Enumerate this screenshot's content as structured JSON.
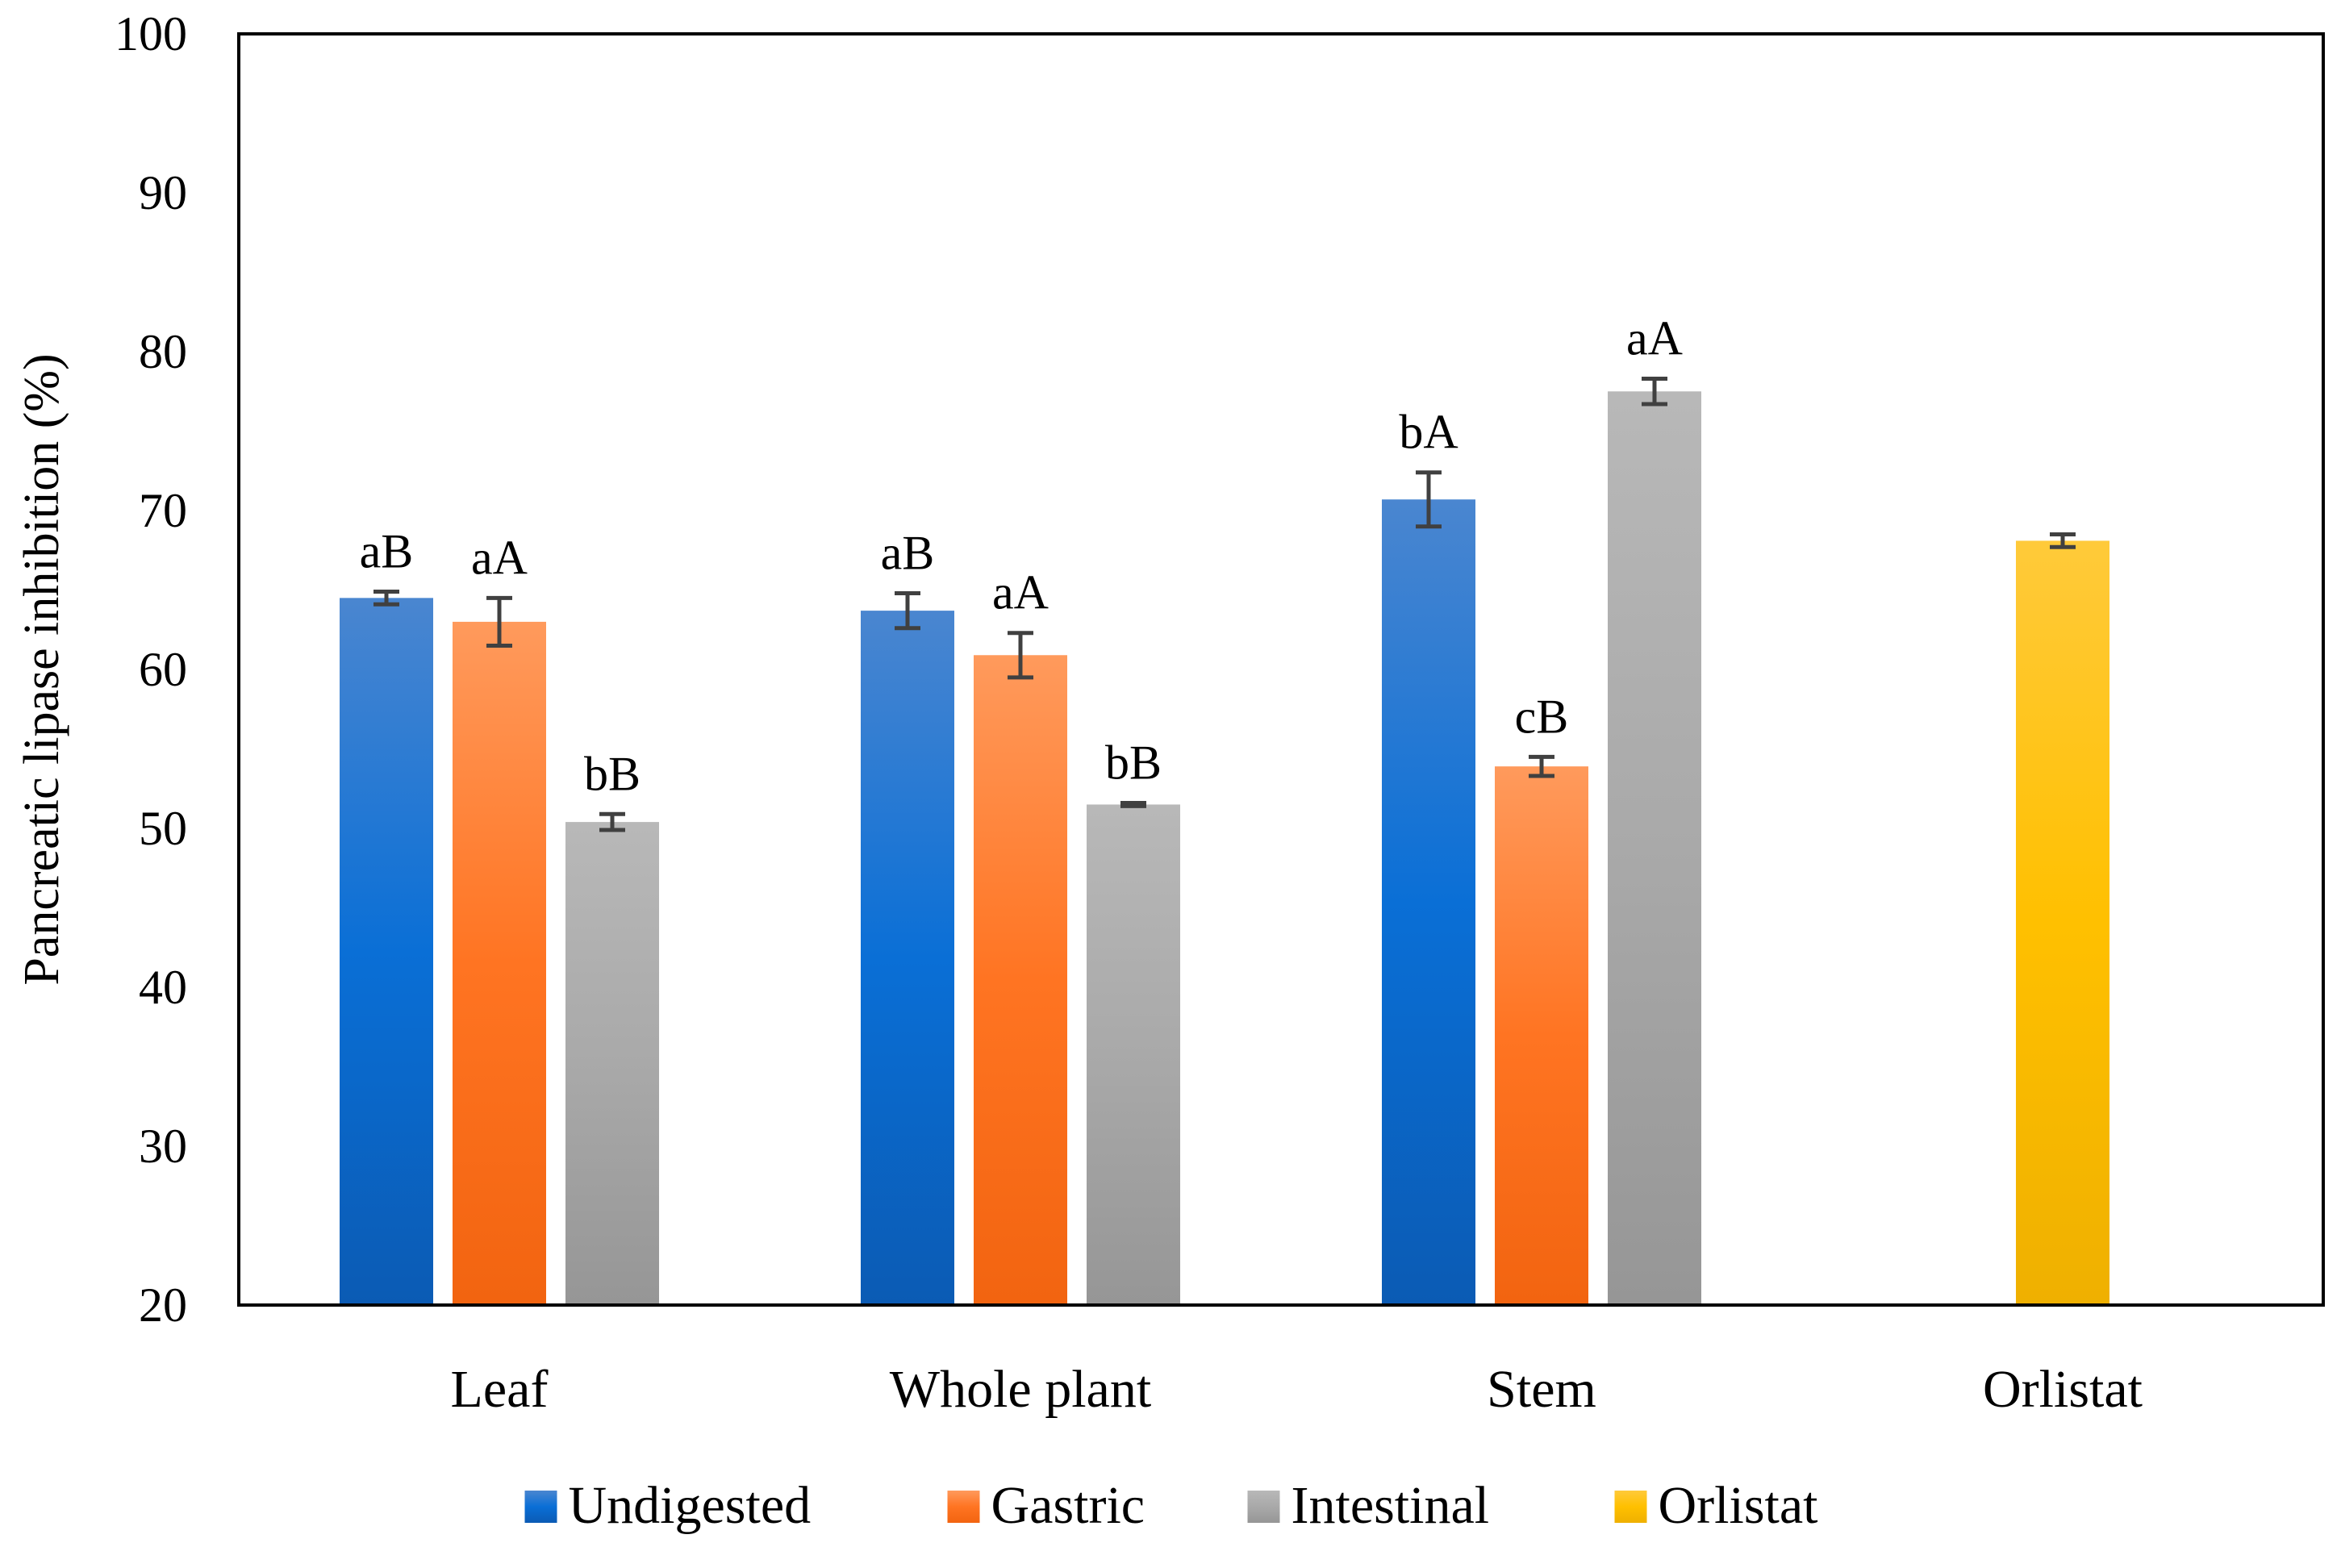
{
  "chart_data": {
    "type": "bar",
    "title": "",
    "xlabel": "",
    "ylabel": "Pancreatic lipase inhibition (%)",
    "ylim": [
      20,
      100
    ],
    "yticks": [
      20,
      30,
      40,
      50,
      60,
      70,
      80,
      90,
      100
    ],
    "grid": false,
    "legend_position": "bottom",
    "categories": [
      "Leaf",
      "Whole plant",
      "Stem",
      "Orlistat"
    ],
    "series": [
      {
        "name": "Undigested",
        "color": "#1565c0",
        "values": [
          64.5,
          63.7,
          70.7,
          null
        ],
        "errors": [
          0.4,
          1.1,
          1.7,
          null
        ],
        "labels": [
          "aB",
          "aB",
          "bA",
          null
        ]
      },
      {
        "name": "Gastric",
        "color": "#ff7a2a",
        "values": [
          63.0,
          60.9,
          53.9,
          null
        ],
        "errors": [
          1.5,
          1.4,
          0.6,
          null
        ],
        "labels": [
          "aA",
          "aA",
          "cB",
          null
        ]
      },
      {
        "name": "Intestinal",
        "color": "#a6a6a6",
        "values": [
          50.4,
          51.5,
          77.5,
          null
        ],
        "errors": [
          0.5,
          0.1,
          0.8,
          null
        ],
        "labels": [
          "bB",
          "bB",
          "aA",
          null
        ]
      },
      {
        "name": "Orlistat",
        "color": "#ffc000",
        "values": [
          null,
          null,
          null,
          68.1
        ],
        "errors": [
          null,
          null,
          null,
          0.4
        ],
        "labels": [
          null,
          null,
          null,
          null
        ]
      }
    ]
  }
}
